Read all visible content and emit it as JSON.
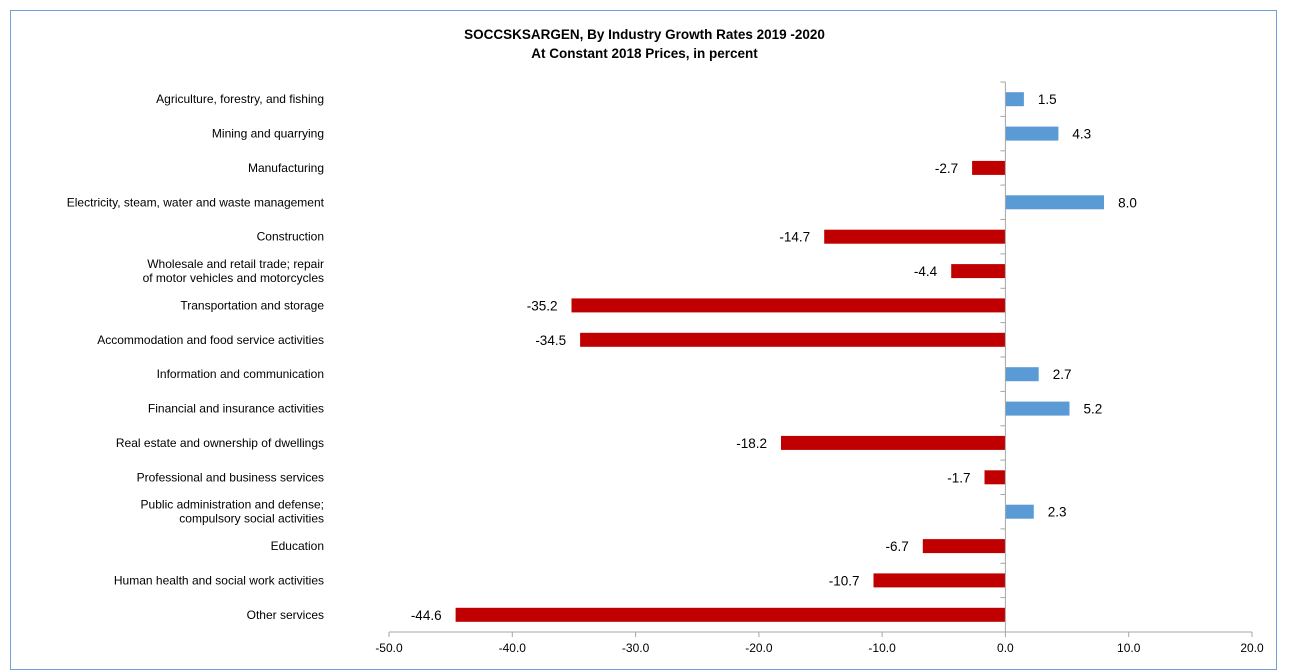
{
  "chart_data": {
    "type": "bar",
    "orientation": "horizontal",
    "title": "SOCCSKSARGEN,  By Industry Growth Rates 2019 -2020",
    "subtitle": "At Constant 2018 Prices, in percent",
    "xlabel": "",
    "ylabel": "",
    "xlim": [
      -50,
      20
    ],
    "xticks": [
      -50,
      -40,
      -30,
      -20,
      -10,
      0,
      10,
      20
    ],
    "xtick_labels": [
      "-50.0",
      "-40.0",
      "-30.0",
      "-20.0",
      "-10.0",
      "0.0",
      "10.0",
      "20.0"
    ],
    "grid": false,
    "legend": "none",
    "colors": {
      "positive": "#5b9bd5",
      "negative": "#c00000",
      "frame": "#6fa0d6",
      "axis": "#a6a6a6"
    },
    "categories": [
      [
        "Agriculture, forestry, and fishing"
      ],
      [
        "Mining and quarrying"
      ],
      [
        "Manufacturing"
      ],
      [
        "Electricity, steam, water and waste management"
      ],
      [
        "Construction"
      ],
      [
        "Wholesale and retail trade; repair",
        "of motor vehicles and motorcycles"
      ],
      [
        "Transportation and storage"
      ],
      [
        "Accommodation and food service activities"
      ],
      [
        "Information and communication"
      ],
      [
        "Financial and insurance activities"
      ],
      [
        "Real estate and ownership of dwellings"
      ],
      [
        "Professional and business services"
      ],
      [
        "Public administration and defense;",
        "compulsory social activities"
      ],
      [
        "Education"
      ],
      [
        "Human health and social work activities"
      ],
      [
        "Other services"
      ]
    ],
    "values": [
      1.5,
      4.3,
      -2.7,
      8.0,
      -14.7,
      -4.4,
      -35.2,
      -34.5,
      2.7,
      5.2,
      -18.2,
      -1.7,
      2.3,
      -6.7,
      -10.7,
      -44.6
    ],
    "value_labels": [
      "1.5",
      "4.3",
      "-2.7",
      "8.0",
      "-14.7",
      "-4.4",
      "-35.2",
      "-34.5",
      "2.7",
      "5.2",
      "-18.2",
      "-1.7",
      "2.3",
      "-6.7",
      "-10.7",
      "-44.6"
    ]
  }
}
